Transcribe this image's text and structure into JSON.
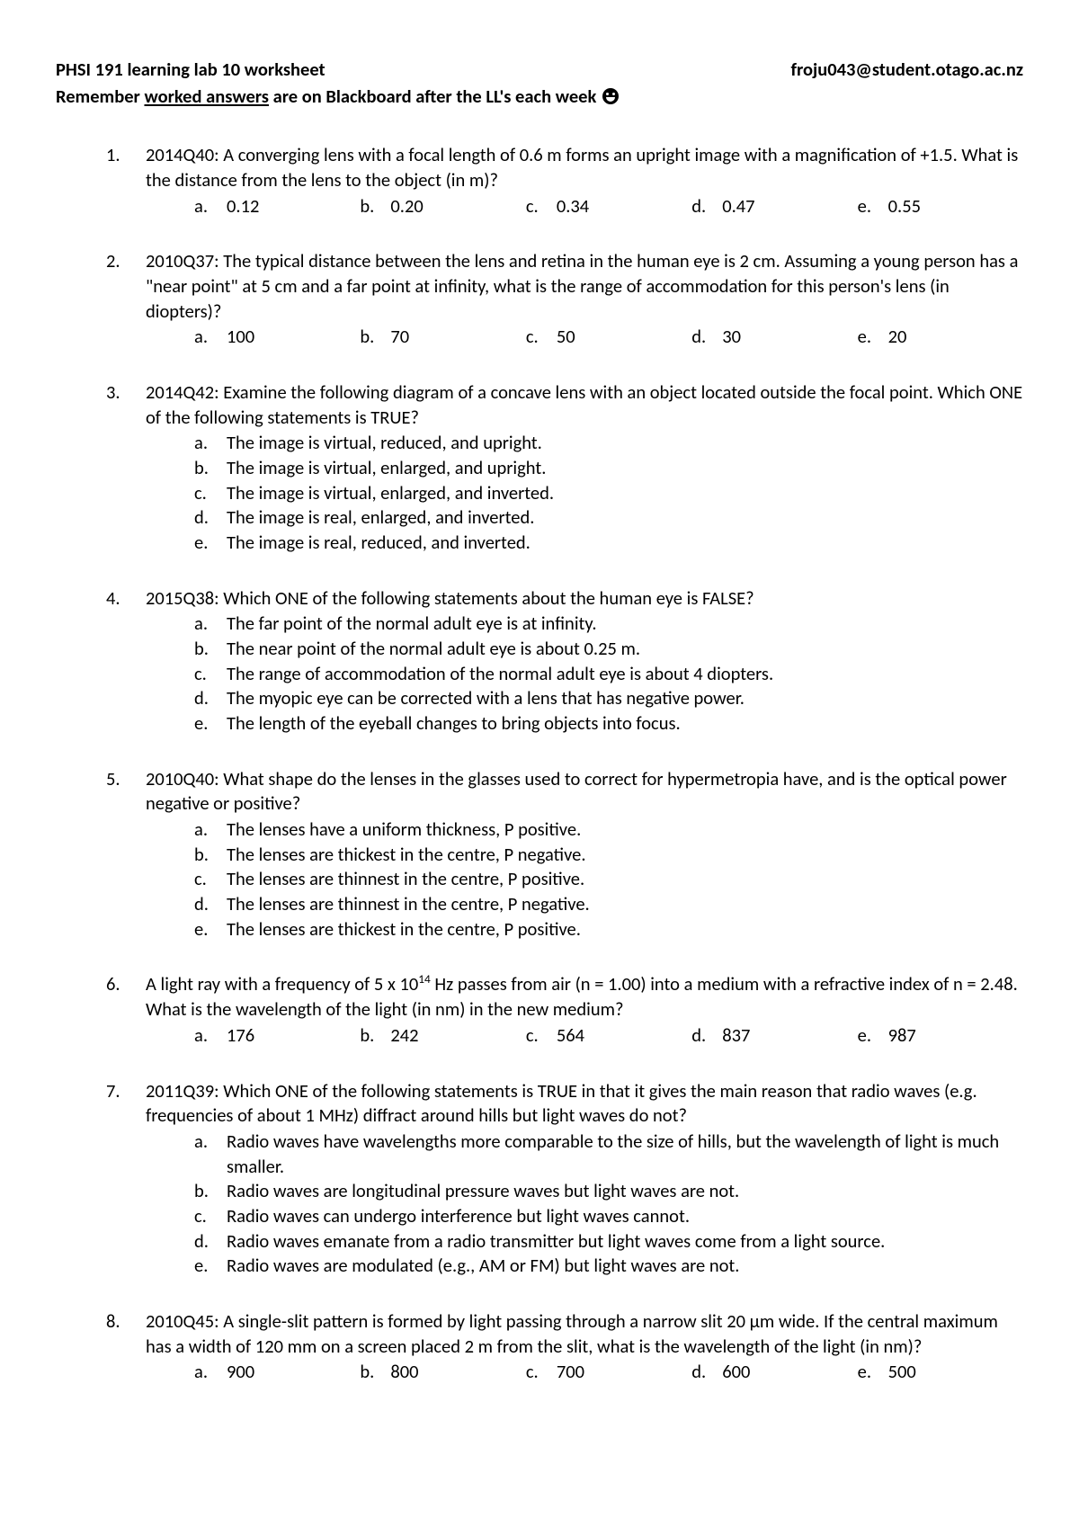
{
  "header": {
    "title_left": "PHSI 191 learning lab 10 worksheet",
    "title_right": "froju043@student.otago.ac.nz",
    "sub_prefix": "Remember ",
    "sub_underlined": "worked answers",
    "sub_suffix": " are on Blackboard after the LL's each week "
  },
  "questions": [
    {
      "num": "1.",
      "text": "2014Q40: A converging lens with a focal length of 0.6 m forms an upright image with a magnification of +1.5. What is the distance from the lens to the object (in m)?",
      "type": "row",
      "choices": {
        "a": "0.12",
        "b": "0.20",
        "c": "0.34",
        "d": "0.47",
        "e": "0.55"
      }
    },
    {
      "num": "2.",
      "text": "2010Q37: The typical distance between the lens and retina in the human eye is 2 cm. Assuming a young person has a \"near point\" at 5 cm and a far point at infinity, what is the range of accommodation for this person's lens (in diopters)?",
      "type": "row",
      "choices": {
        "a": "100",
        "b": "70",
        "c": "50",
        "d": "30",
        "e": "20"
      }
    },
    {
      "num": "3.",
      "text": "2014Q42: Examine the following diagram of a concave lens with an object located outside the focal point. Which ONE of the following statements is TRUE?",
      "type": "list",
      "choices": {
        "a": "The image is virtual, reduced, and upright.",
        "b": "The image is virtual, enlarged, and upright.",
        "c": "The image is virtual, enlarged, and inverted.",
        "d": "The image is real, enlarged, and inverted.",
        "e": "The image is real, reduced, and inverted."
      }
    },
    {
      "num": "4.",
      "text": "2015Q38: Which ONE of the following statements about the human eye is FALSE?",
      "type": "list",
      "choices": {
        "a": "The far point of the normal adult eye is at infinity.",
        "b": "The near point of the normal adult eye is about 0.25 m.",
        "c": "The range of accommodation of the normal adult eye is about 4 diopters.",
        "d": "The myopic eye can be corrected with a lens that has negative power.",
        "e": "The length of the eyeball changes to bring objects into focus."
      }
    },
    {
      "num": "5.",
      "text": "2010Q40: What shape do the lenses in the glasses used to correct for hypermetropia have, and is the optical power negative or positive?",
      "type": "list",
      "choices": {
        "a": "The lenses have a uniform thickness, P positive.",
        "b": "The lenses are thickest in the centre, P negative.",
        "c": "The lenses are thinnest in the centre, P positive.",
        "d": "The lenses are thinnest in the centre, P negative.",
        "e": "The lenses are thickest in the centre, P positive."
      }
    },
    {
      "num": "6.",
      "text_html": "A light ray with a frequency of 5 x 10<sup>14</sup> Hz passes from air (n = 1.00) into a medium with a refractive index of n = 2.48. What is the wavelength of the light (in nm) in the new medium?",
      "type": "row",
      "choices": {
        "a": "176",
        "b": "242",
        "c": "564",
        "d": "837",
        "e": "987"
      }
    },
    {
      "num": "7.",
      "text": "2011Q39: Which ONE of the following statements is TRUE in that it gives the main reason that radio waves (e.g. frequencies of about 1 MHz) diffract around hills but light waves do not?",
      "type": "list",
      "choices": {
        "a": "Radio waves have wavelengths more comparable to the size of hills, but the wavelength of light is much smaller.",
        "b": "Radio waves are longitudinal pressure waves but light waves are not.",
        "c": "Radio waves can undergo interference but light waves cannot.",
        "d": "Radio waves emanate from a radio transmitter but light waves come from a light source.",
        "e": "Radio waves are modulated (e.g., AM or FM) but light waves are not."
      }
    },
    {
      "num": "8.",
      "text": "2010Q45: A single-slit pattern is formed by light passing through a narrow slit 20 µm wide. If the central maximum has a width of 120 mm on a screen placed 2 m from the slit, what is the wavelength of the light (in nm)?",
      "type": "row",
      "choices": {
        "a": "900",
        "b": "800",
        "c": "700",
        "d": "600",
        "e": "500"
      }
    }
  ]
}
